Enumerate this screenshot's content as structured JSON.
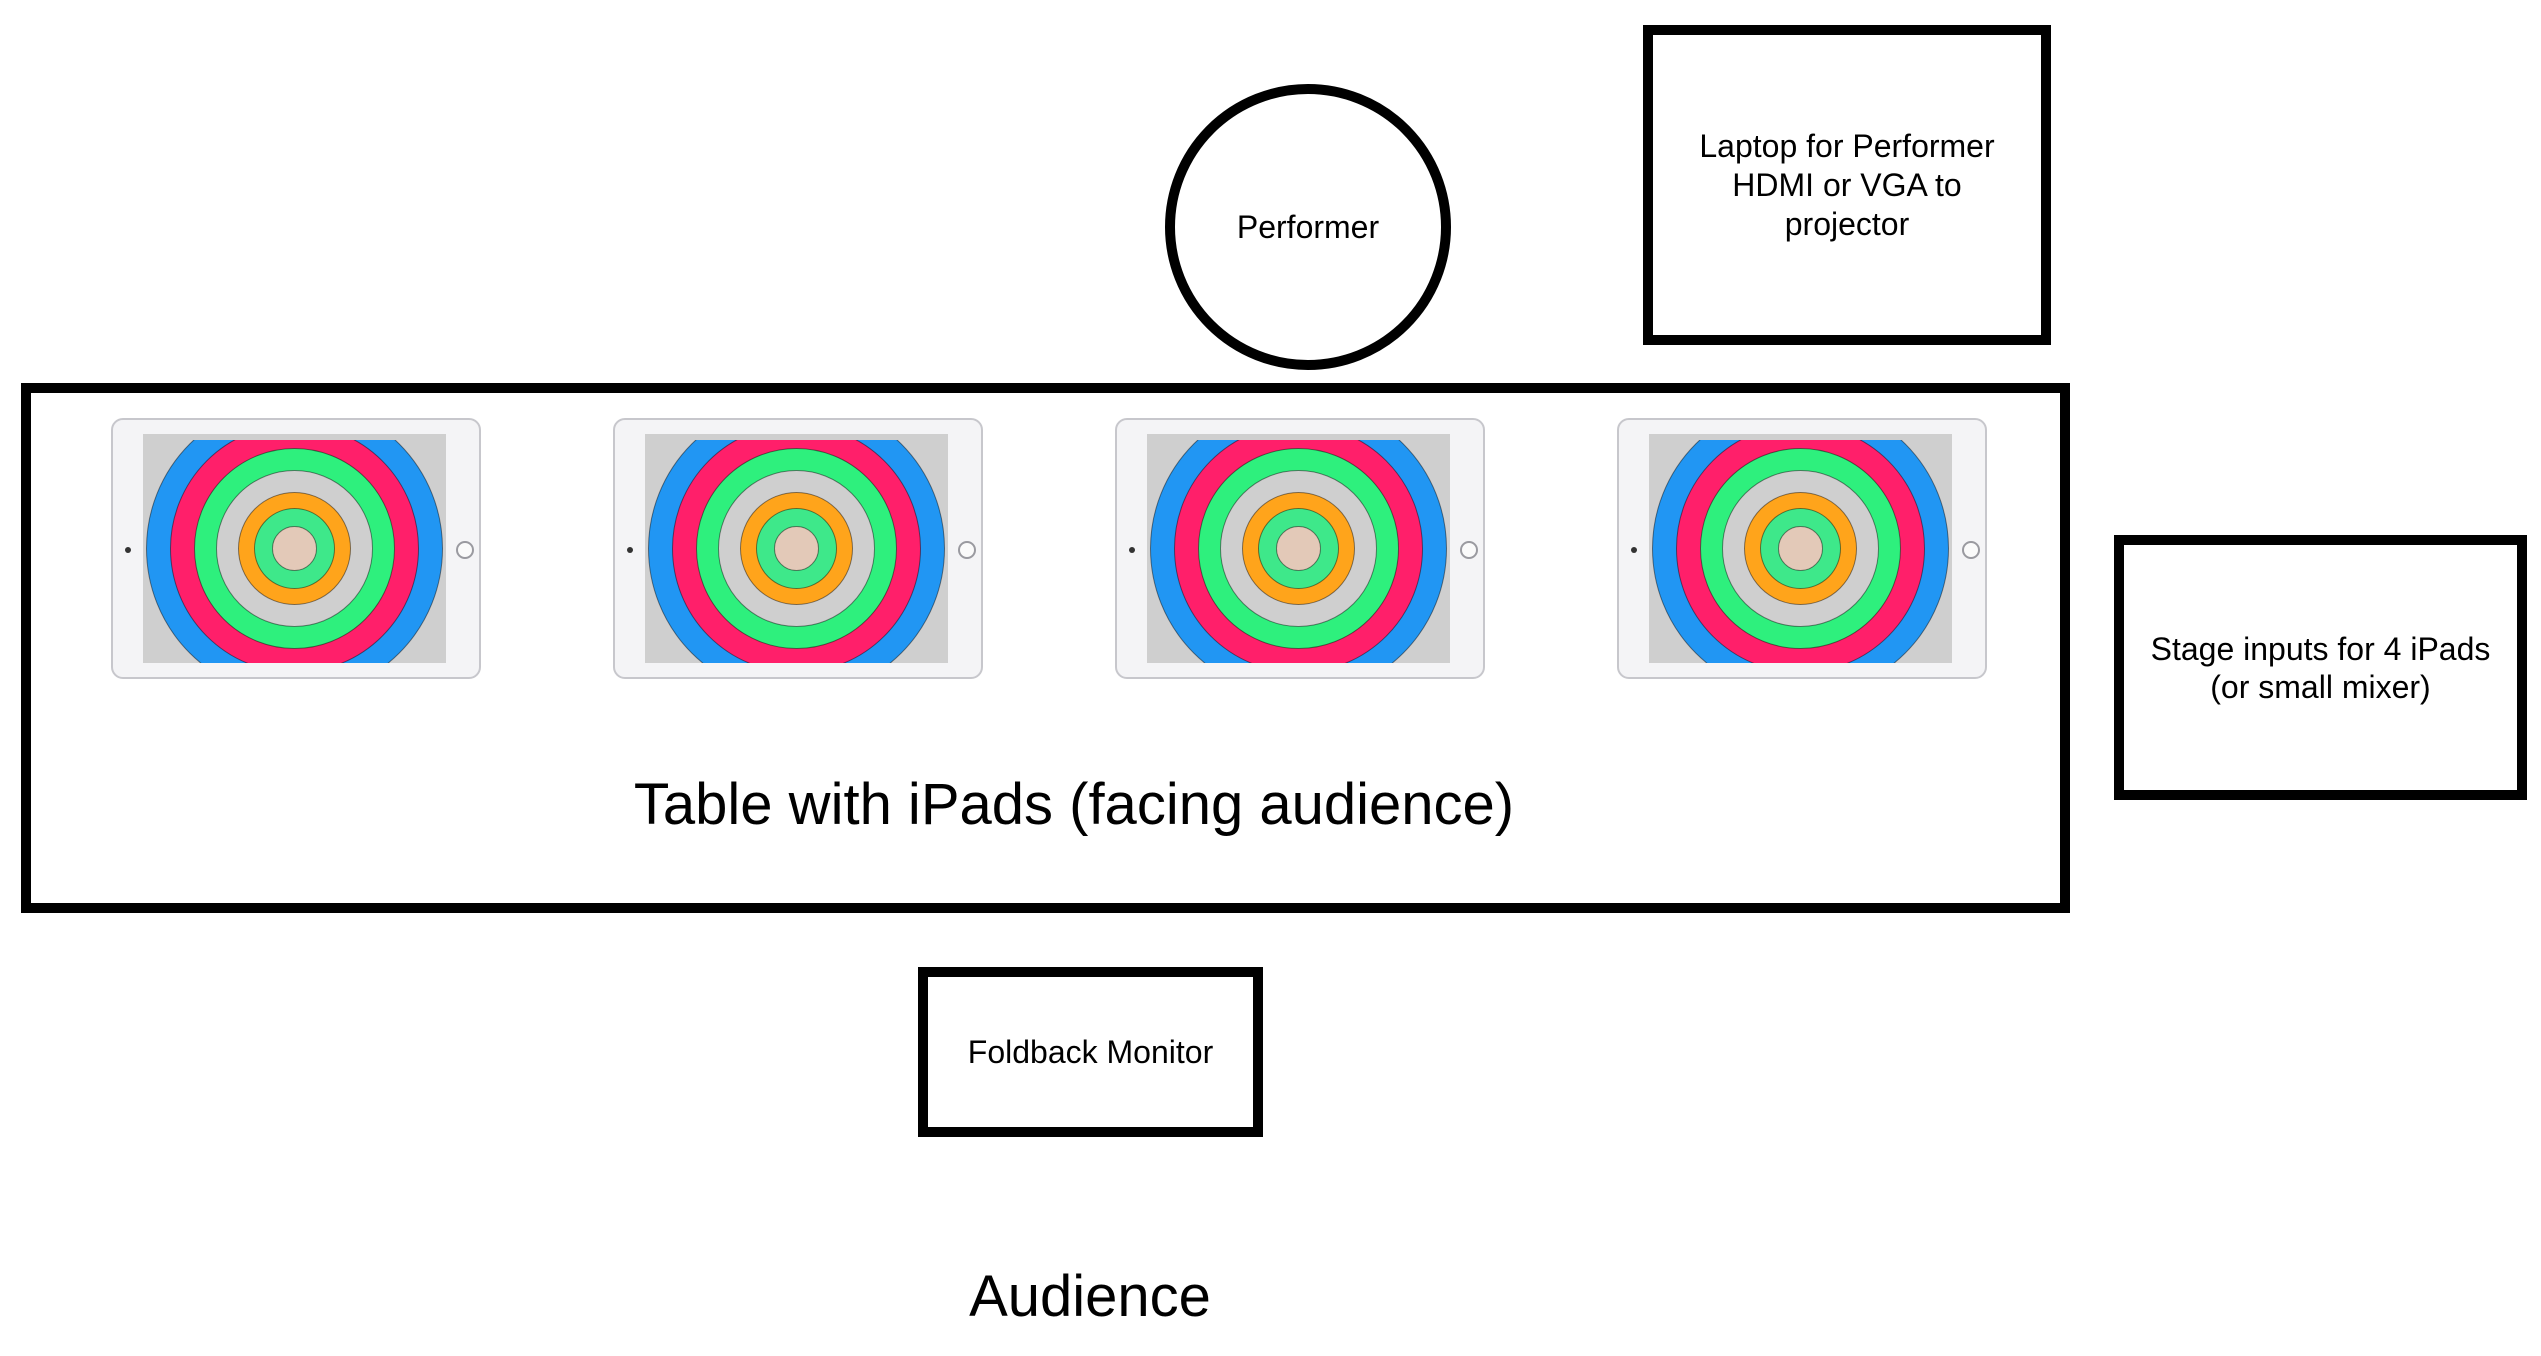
{
  "nodes": {
    "laptop": "Laptop for Performer\nHDMI or VGA to\nprojector",
    "performer": "Performer",
    "stage_inputs": "Stage inputs for 4 iPads\n(or small mixer)",
    "table": "Table with iPads (facing audience)",
    "foldback": "Foldback Monitor",
    "audience": "Audience"
  },
  "ipad_count": 4,
  "ipad_rings": [
    "#cfcfcf",
    "#2196f3",
    "#ff1f6a",
    "#2ef07d",
    "#cfcfcf",
    "#ffa41b",
    "#3ee88a",
    "#e3c9b8"
  ],
  "colors": {
    "stroke": "#000000",
    "background": "#ffffff"
  }
}
